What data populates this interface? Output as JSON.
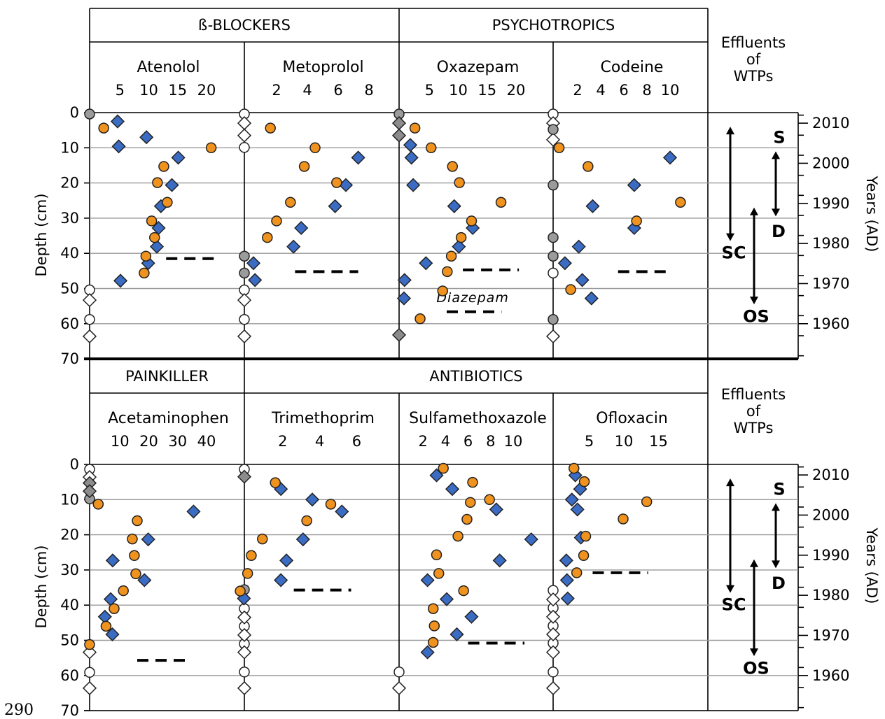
{
  "figure_number": "290",
  "chart_data": [
    {
      "type": "scatter",
      "panel": "top",
      "y_axis": {
        "label": "Depth (cm)",
        "ticks": [
          "0",
          "10",
          "20",
          "30",
          "40",
          "50",
          "60",
          "70"
        ],
        "range": [
          0,
          70
        ]
      },
      "y2_axis": {
        "label": "Years (AD)",
        "ticks": [
          "2010",
          "2000",
          "1990",
          "1980",
          "1970",
          "1960"
        ]
      },
      "groups": [
        "ß-BLOCKERS",
        "PSYCHOTROPICS"
      ],
      "effluents_label": [
        "Effluents",
        "of",
        "WTPs"
      ],
      "range_labels": {
        "s": "S",
        "d": "D",
        "sc": "SC",
        "os": "OS"
      },
      "series_colors": {
        "diamond": "#3b6cc4",
        "circle": "#f0921e",
        "nd_circle": "#9b9b9b",
        "nd_diamond": "#8c8c8c",
        "open": "#ffffff"
      },
      "compounds": [
        {
          "name": "Atenolol",
          "ticks": [
            "5",
            "10",
            "15",
            "20"
          ],
          "xmax": 24,
          "diamonds": [
            [
              4.6,
              2.5
            ],
            [
              4.8,
              9.6
            ],
            [
              9.6,
              7
            ],
            [
              15.1,
              12.8
            ],
            [
              14,
              20.6
            ],
            [
              12.1,
              26.6
            ],
            [
              11.7,
              32.8
            ],
            [
              11.4,
              38.1
            ],
            [
              9.9,
              42.8
            ],
            [
              5.1,
              47.8
            ]
          ],
          "circles": [
            [
              2.2,
              4.4
            ],
            [
              20.8,
              10
            ],
            [
              12.6,
              15.3
            ],
            [
              11.5,
              19.9
            ],
            [
              13.2,
              25.5
            ],
            [
              10.5,
              30.8
            ],
            [
              11,
              35.5
            ],
            [
              9.5,
              40.8
            ],
            [
              9.2,
              45.6
            ]
          ],
          "nd_circles": [
            [
              0,
              0.4
            ]
          ],
          "open_circles": [
            [
              0,
              50.4
            ],
            [
              0,
              58.8
            ]
          ],
          "open_diamonds": [
            [
              0,
              53.3
            ],
            [
              0,
              63.6
            ]
          ],
          "threshold": 8,
          "threshold_x": [
            13,
            21.5
          ]
        },
        {
          "name": "Metoprolol",
          "ticks": [
            "2",
            "4",
            "6",
            "8"
          ],
          "xmax": 9,
          "diamonds": [
            [
              7.3,
              12.8
            ],
            [
              6.5,
              20.6
            ],
            [
              5.8,
              26.6
            ],
            [
              3.6,
              32.8
            ],
            [
              3.1,
              38.1
            ],
            [
              0.5,
              42.8
            ],
            [
              0.6,
              47.6
            ]
          ],
          "circles": [
            [
              1.6,
              4.4
            ],
            [
              4.5,
              10
            ],
            [
              3.8,
              15.3
            ],
            [
              5.9,
              19.9
            ],
            [
              2.9,
              25.5
            ],
            [
              2,
              30.8
            ],
            [
              1.4,
              35.5
            ]
          ],
          "nd_circles": [
            [
              0,
              40.8
            ],
            [
              0,
              45.6
            ]
          ],
          "open_circles": [
            [
              0,
              0.4
            ],
            [
              0,
              9.9
            ],
            [
              0,
              50.4
            ],
            [
              0,
              58.8
            ]
          ],
          "open_diamonds": [
            [
              0,
              3
            ],
            [
              0,
              6.5
            ],
            [
              0,
              53.3
            ],
            [
              0,
              63.6
            ]
          ],
          "threshold": 3,
          "threshold_x": [
            3.2,
            7.3
          ]
        },
        {
          "name": "Oxazepam",
          "ticks": [
            "5",
            "10",
            "15",
            "20"
          ],
          "xmax": 24,
          "diamonds": [
            [
              1.7,
              9.2
            ],
            [
              1.9,
              12.8
            ],
            [
              2.2,
              20.6
            ],
            [
              9.3,
              26.6
            ],
            [
              12.5,
              32.8
            ],
            [
              10.1,
              38.1
            ],
            [
              4.4,
              42.8
            ],
            [
              0.7,
              47.6
            ],
            [
              0.6,
              52.8
            ]
          ],
          "circles": [
            [
              2.5,
              4.4
            ],
            [
              5.3,
              10
            ],
            [
              9,
              15.3
            ],
            [
              10.2,
              19.9
            ],
            [
              17.4,
              25.5
            ],
            [
              12.3,
              30.8
            ],
            [
              10.5,
              35.5
            ],
            [
              8.8,
              40.8
            ],
            [
              8.1,
              45.2
            ],
            [
              7.3,
              50.7
            ],
            [
              3.4,
              58.6
            ]
          ],
          "nd_circles": [
            [
              0,
              0.4
            ]
          ],
          "nd_diamonds": [
            [
              0,
              3
            ],
            [
              0,
              6.5
            ],
            [
              0,
              63.2
            ]
          ],
          "threshold": 3,
          "threshold_x": [
            10.8,
            20.5
          ],
          "secondary": {
            "label": "Diazepam",
            "x": [
              8,
              17.5
            ]
          }
        },
        {
          "name": "Codeine",
          "ticks": [
            "2",
            "4",
            "6",
            "8",
            "10"
          ],
          "xmax": 12,
          "diamonds": [
            [
              10,
              12.8
            ],
            [
              6.9,
              20.6
            ],
            [
              3.3,
              26.6
            ],
            [
              6.9,
              32.8
            ],
            [
              2.1,
              38.1
            ],
            [
              0.9,
              42.8
            ],
            [
              2.4,
              47.6
            ],
            [
              3.2,
              52.8
            ]
          ],
          "circles": [
            [
              0.4,
              10
            ],
            [
              2.9,
              15.3
            ],
            [
              10.9,
              25.5
            ],
            [
              7.1,
              30.8
            ],
            [
              1.4,
              50.3
            ]
          ],
          "nd_circles": [
            [
              0,
              4.8
            ],
            [
              0,
              20.6
            ],
            [
              0,
              35.5
            ],
            [
              0,
              40.8
            ],
            [
              0,
              58.8
            ]
          ],
          "open_circles": [
            [
              0,
              0.4
            ],
            [
              0,
              45.6
            ]
          ],
          "open_diamonds": [
            [
              0,
              3
            ],
            [
              0,
              7.7
            ],
            [
              0,
              63.6
            ]
          ],
          "threshold": 4,
          "threshold_x": [
            5.5,
            10
          ]
        }
      ]
    },
    {
      "type": "scatter",
      "panel": "bottom",
      "y_axis": {
        "label": "Depth (cm)",
        "ticks": [
          "0",
          "10",
          "20",
          "30",
          "40",
          "50",
          "60",
          "70"
        ],
        "range": [
          0,
          70
        ]
      },
      "y2_axis": {
        "label": "Years (AD)",
        "ticks": [
          "2010",
          "2000",
          "1990",
          "1980",
          "1970",
          "1960"
        ]
      },
      "groups": [
        "PAINKILLER",
        "ANTIBIOTICS"
      ],
      "effluents_label": [
        "Effluents",
        "of",
        "WTPs"
      ],
      "range_labels": {
        "s": "S",
        "d": "D",
        "sc": "SC",
        "os": "OS"
      },
      "compounds": [
        {
          "name": "Acetaminophen",
          "ticks": [
            "10",
            "20",
            "30",
            "40"
          ],
          "xmax": 48,
          "diamonds": [
            [
              35.5,
              13.4
            ],
            [
              19.8,
              21.3
            ],
            [
              7.5,
              27.3
            ],
            [
              18.5,
              32.9
            ],
            [
              6.8,
              38.3
            ],
            [
              4.8,
              43.3
            ],
            [
              7.4,
              48.3
            ]
          ],
          "circles": [
            [
              2.5,
              11.3
            ],
            [
              16,
              16
            ],
            [
              14.3,
              21.2
            ],
            [
              15,
              25.9
            ],
            [
              15.5,
              31.1
            ],
            [
              11.2,
              35.9
            ],
            [
              8,
              41
            ],
            [
              5.2,
              46
            ],
            [
              -0.5,
              51.2
            ]
          ],
          "nd_diamonds": [
            [
              0,
              5.3
            ],
            [
              0,
              7.6
            ]
          ],
          "nd_circles": [
            [
              0,
              9.8
            ]
          ],
          "open_circles": [
            [
              0,
              1.4
            ],
            [
              0,
              59.1
            ]
          ],
          "open_diamonds": [
            [
              0,
              3.6
            ],
            [
              0,
              53.4
            ],
            [
              0,
              63.6
            ]
          ],
          "threshold": 5,
          "threshold_x": [
            16,
            33
          ]
        },
        {
          "name": "Trimethoprim",
          "ticks": [
            "2",
            "4",
            "6"
          ],
          "xmax": 7.5,
          "diamonds": [
            [
              1.9,
              7
            ],
            [
              3.6,
              10
            ],
            [
              5.2,
              13.4
            ],
            [
              3.1,
              21.3
            ],
            [
              2.2,
              27.3
            ],
            [
              1.9,
              32.9
            ],
            [
              -0.1,
              38.1
            ]
          ],
          "circles": [
            [
              1.6,
              5.2
            ],
            [
              4.6,
              11.3
            ],
            [
              3.3,
              16
            ],
            [
              0.9,
              21.2
            ],
            [
              0.3,
              25.9
            ],
            [
              0.1,
              31
            ],
            [
              -0.3,
              36
            ]
          ],
          "nd_diamonds": [
            [
              0,
              3.5
            ]
          ],
          "nd_circles": [
            [
              0,
              35.6
            ]
          ],
          "open_circles": [
            [
              0,
              1.4
            ],
            [
              0,
              41
            ],
            [
              0,
              46
            ],
            [
              0,
              51
            ],
            [
              0,
              59
            ]
          ],
          "open_diamonds": [
            [
              0,
              43.5
            ],
            [
              0,
              48.5
            ],
            [
              0,
              53.4
            ],
            [
              0,
              63.6
            ]
          ],
          "threshold": 5,
          "threshold_x": [
            2.6,
            5.7
          ]
        },
        {
          "name": "Sulfamethoxazole",
          "ticks": [
            "2",
            "4",
            "6",
            "8",
            "10"
          ],
          "xmax": 12.3,
          "diamonds": [
            [
              3.2,
              3.1
            ],
            [
              4.6,
              7.0
            ],
            [
              8.5,
              12.8
            ],
            [
              11.6,
              21.3
            ],
            [
              8.8,
              27.3
            ],
            [
              2.4,
              32.9
            ],
            [
              4.1,
              38.3
            ],
            [
              6.3,
              43.3
            ],
            [
              5,
              48.3
            ],
            [
              2.4,
              53.4
            ]
          ],
          "circles": [
            [
              3.8,
              1.1
            ],
            [
              6.4,
              5.1
            ],
            [
              7.9,
              10
            ],
            [
              6.2,
              10.8
            ],
            [
              5.9,
              15.6
            ],
            [
              5.1,
              20.4
            ],
            [
              3.2,
              25.7
            ],
            [
              3.4,
              31
            ],
            [
              5.6,
              35.9
            ],
            [
              2.9,
              41
            ],
            [
              3,
              45.9
            ],
            [
              2.9,
              50.6
            ]
          ],
          "open_circles": [
            [
              0,
              59
            ]
          ],
          "open_diamonds": [
            [
              0,
              63.6
            ]
          ],
          "threshold": 3,
          "threshold_x": [
            6,
            11
          ]
        },
        {
          "name": "Ofloxacin",
          "ticks": [
            "5",
            "10",
            "15"
          ],
          "xmax": 20,
          "diamonds": [
            [
              3,
              3.1
            ],
            [
              3.7,
              7
            ],
            [
              2.5,
              10
            ],
            [
              3.3,
              12.8
            ],
            [
              3.8,
              20.8
            ],
            [
              1.7,
              27.3
            ],
            [
              1.8,
              32.9
            ],
            [
              1.9,
              38.1
            ]
          ],
          "circles": [
            [
              2.8,
              1.1
            ],
            [
              4.3,
              4.9
            ],
            [
              13.3,
              10.6
            ],
            [
              9.9,
              15.5
            ],
            [
              4.5,
              20.4
            ],
            [
              4.2,
              25.9
            ],
            [
              3.2,
              30.8
            ]
          ],
          "open_circles": [
            [
              0,
              35.8
            ],
            [
              0,
              40.8
            ],
            [
              0,
              45.9
            ],
            [
              0,
              50.8
            ],
            [
              0,
              59
            ]
          ],
          "open_diamonds": [
            [
              0,
              38.4
            ],
            [
              0,
              43.3
            ],
            [
              0,
              48.3
            ],
            [
              0,
              53.4
            ],
            [
              0,
              63.6
            ]
          ],
          "threshold": 5,
          "threshold_x": [
            5.5,
            13.5
          ]
        }
      ]
    }
  ]
}
